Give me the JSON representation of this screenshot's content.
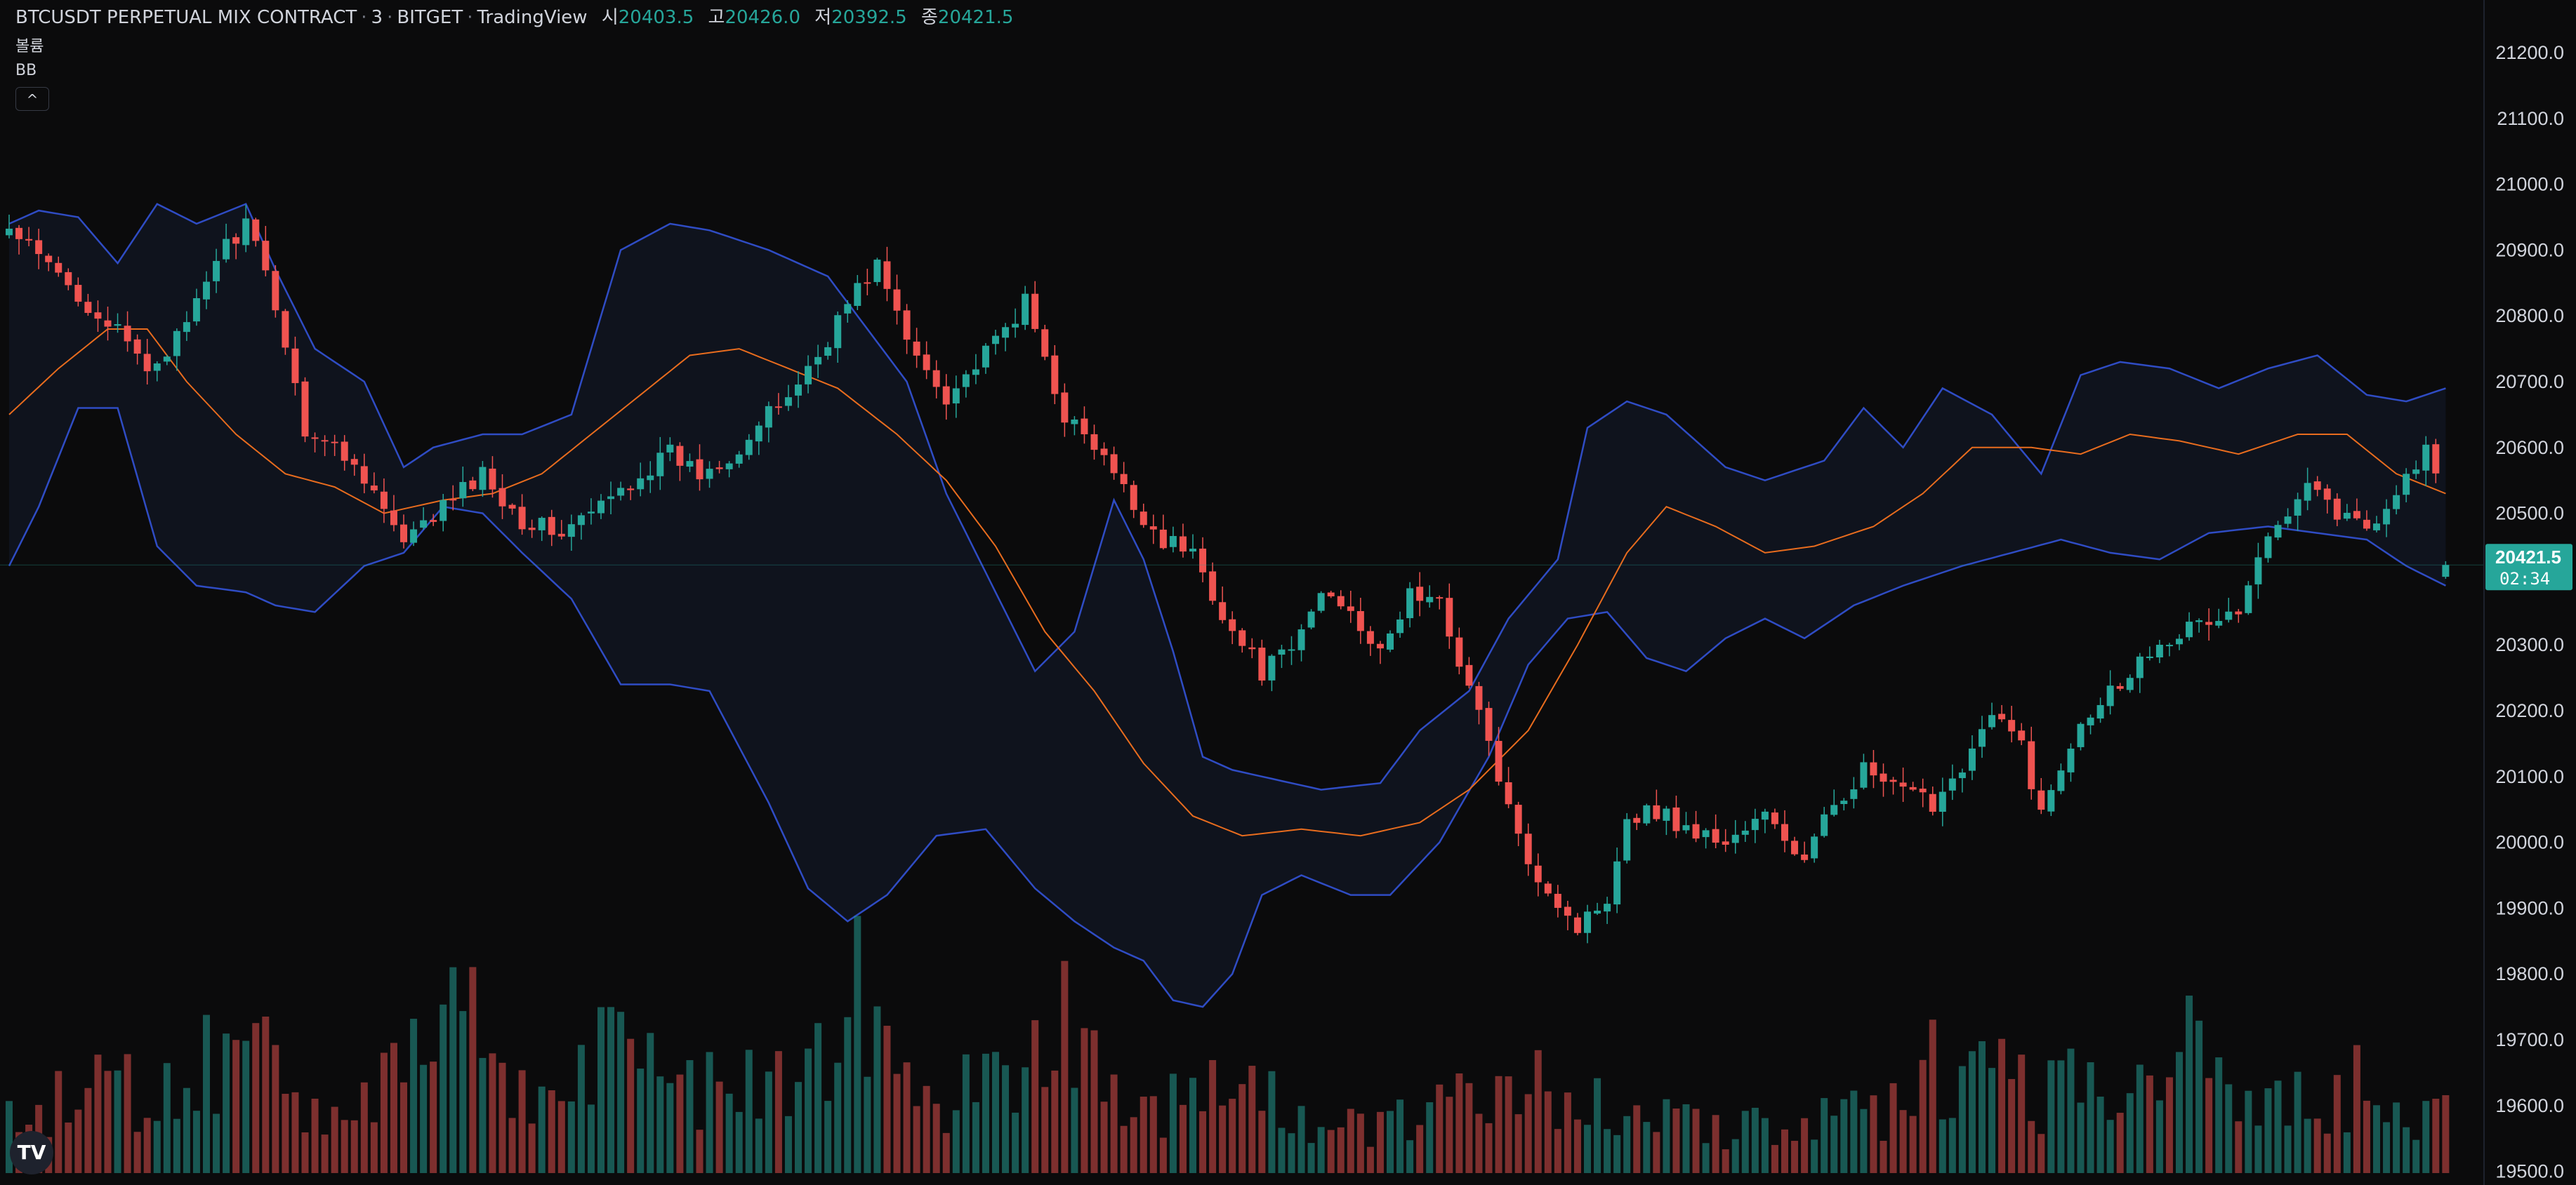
{
  "header": {
    "symbol": "BTCUSDT PERPETUAL MIX CONTRACT",
    "interval": "3",
    "exchange": "BITGET",
    "source": "TradingView",
    "ohlc": [
      {
        "key": "시",
        "value": "20403.5"
      },
      {
        "key": "고",
        "value": "20426.0"
      },
      {
        "key": "저",
        "value": "20392.5"
      },
      {
        "key": "종",
        "value": "20421.5"
      }
    ]
  },
  "indicators": {
    "volume": "볼륨",
    "bb": "BB",
    "collapse": "^"
  },
  "price_tag": {
    "price": "20421.5",
    "countdown": "02:34"
  },
  "logo": "TV",
  "colors": {
    "background": "#0b0b0c",
    "up": "#26a69a",
    "down": "#ef5350",
    "bb_band": "#2f4cc4",
    "bb_basis": "#e86c1e",
    "axis_text": "#d1d4dc"
  },
  "chart_data": {
    "type": "candlestick",
    "y_axis_ticks": [
      "21200.0",
      "21100.0",
      "21000.0",
      "20900.0",
      "20800.0",
      "20700.0",
      "20600.0",
      "20500.0",
      "20400.0",
      "20300.0",
      "20200.0",
      "20100.0",
      "20000.0",
      "19900.0",
      "19800.0",
      "19700.0",
      "19600.0",
      "19500.0"
    ],
    "ylim": [
      19500,
      21200
    ],
    "last_price": 20421.5,
    "candle_count": 248,
    "close_path": [
      [
        0,
        20930
      ],
      [
        10,
        20790
      ],
      [
        14,
        20720
      ],
      [
        18,
        20780
      ],
      [
        21,
        20890
      ],
      [
        24,
        20940
      ],
      [
        27,
        20820
      ],
      [
        30,
        20630
      ],
      [
        33,
        20600
      ],
      [
        36,
        20560
      ],
      [
        40,
        20450
      ],
      [
        44,
        20510
      ],
      [
        48,
        20560
      ],
      [
        52,
        20490
      ],
      [
        56,
        20470
      ],
      [
        60,
        20510
      ],
      [
        64,
        20560
      ],
      [
        67,
        20590
      ],
      [
        70,
        20560
      ],
      [
        74,
        20600
      ],
      [
        79,
        20680
      ],
      [
        82,
        20740
      ],
      [
        85,
        20820
      ],
      [
        88,
        20880
      ],
      [
        91,
        20760
      ],
      [
        95,
        20680
      ],
      [
        99,
        20740
      ],
      [
        103,
        20820
      ],
      [
        107,
        20650
      ],
      [
        111,
        20580
      ],
      [
        114,
        20510
      ],
      [
        117,
        20460
      ],
      [
        120,
        20440
      ],
      [
        124,
        20320
      ],
      [
        127,
        20260
      ],
      [
        130,
        20290
      ],
      [
        133,
        20380
      ],
      [
        136,
        20360
      ],
      [
        139,
        20280
      ],
      [
        142,
        20380
      ],
      [
        145,
        20360
      ],
      [
        147,
        20280
      ],
      [
        150,
        20150
      ],
      [
        153,
        20000
      ],
      [
        156,
        19930
      ],
      [
        159,
        19870
      ],
      [
        162,
        19920
      ],
      [
        164,
        20040
      ],
      [
        167,
        20050
      ],
      [
        170,
        20020
      ],
      [
        174,
        20000
      ],
      [
        178,
        20040
      ],
      [
        182,
        19970
      ],
      [
        185,
        20060
      ],
      [
        188,
        20110
      ],
      [
        191,
        20080
      ],
      [
        195,
        20060
      ],
      [
        198,
        20120
      ],
      [
        201,
        20190
      ],
      [
        204,
        20150
      ],
      [
        206,
        20040
      ],
      [
        210,
        20190
      ],
      [
        215,
        20260
      ],
      [
        218,
        20310
      ],
      [
        222,
        20330
      ],
      [
        226,
        20350
      ],
      [
        229,
        20460
      ],
      [
        233,
        20560
      ],
      [
        236,
        20500
      ],
      [
        239,
        20480
      ],
      [
        242,
        20530
      ],
      [
        245,
        20600
      ],
      [
        247,
        20500
      ]
    ],
    "bb_upper_path": [
      [
        0,
        20940
      ],
      [
        3,
        20960
      ],
      [
        7,
        20950
      ],
      [
        11,
        20880
      ],
      [
        15,
        20970
      ],
      [
        19,
        20940
      ],
      [
        24,
        20970
      ],
      [
        27,
        20870
      ],
      [
        31,
        20750
      ],
      [
        36,
        20700
      ],
      [
        40,
        20570
      ],
      [
        43,
        20600
      ],
      [
        48,
        20620
      ],
      [
        52,
        20620
      ],
      [
        57,
        20650
      ],
      [
        62,
        20900
      ],
      [
        67,
        20940
      ],
      [
        71,
        20930
      ],
      [
        77,
        20900
      ],
      [
        83,
        20860
      ],
      [
        87,
        20780
      ],
      [
        91,
        20700
      ],
      [
        95,
        20530
      ],
      [
        99,
        20410
      ],
      [
        104,
        20260
      ],
      [
        108,
        20320
      ],
      [
        112,
        20520
      ],
      [
        115,
        20430
      ],
      [
        118,
        20290
      ],
      [
        121,
        20130
      ],
      [
        124,
        20110
      ],
      [
        127,
        20100
      ],
      [
        133,
        20080
      ],
      [
        139,
        20090
      ],
      [
        143,
        20170
      ],
      [
        148,
        20230
      ],
      [
        152,
        20340
      ],
      [
        157,
        20430
      ],
      [
        160,
        20630
      ],
      [
        164,
        20670
      ],
      [
        168,
        20650
      ],
      [
        174,
        20570
      ],
      [
        178,
        20550
      ],
      [
        184,
        20580
      ],
      [
        188,
        20660
      ],
      [
        192,
        20600
      ],
      [
        196,
        20690
      ],
      [
        201,
        20650
      ],
      [
        206,
        20560
      ],
      [
        210,
        20710
      ],
      [
        214,
        20730
      ],
      [
        219,
        20720
      ],
      [
        224,
        20690
      ],
      [
        229,
        20720
      ],
      [
        234,
        20740
      ],
      [
        239,
        20680
      ],
      [
        243,
        20670
      ],
      [
        247,
        20690
      ]
    ],
    "bb_lower_path": [
      [
        0,
        20420
      ],
      [
        3,
        20510
      ],
      [
        7,
        20660
      ],
      [
        11,
        20660
      ],
      [
        15,
        20450
      ],
      [
        19,
        20390
      ],
      [
        24,
        20380
      ],
      [
        27,
        20360
      ],
      [
        31,
        20350
      ],
      [
        36,
        20420
      ],
      [
        40,
        20440
      ],
      [
        44,
        20510
      ],
      [
        48,
        20500
      ],
      [
        52,
        20440
      ],
      [
        57,
        20370
      ],
      [
        62,
        20240
      ],
      [
        67,
        20240
      ],
      [
        71,
        20230
      ],
      [
        77,
        20060
      ],
      [
        81,
        19930
      ],
      [
        85,
        19880
      ],
      [
        89,
        19920
      ],
      [
        94,
        20010
      ],
      [
        99,
        20020
      ],
      [
        104,
        19930
      ],
      [
        108,
        19880
      ],
      [
        112,
        19840
      ],
      [
        115,
        19820
      ],
      [
        118,
        19760
      ],
      [
        121,
        19750
      ],
      [
        124,
        19800
      ],
      [
        127,
        19920
      ],
      [
        131,
        19950
      ],
      [
        136,
        19920
      ],
      [
        140,
        19920
      ],
      [
        145,
        20000
      ],
      [
        150,
        20130
      ],
      [
        154,
        20270
      ],
      [
        158,
        20340
      ],
      [
        162,
        20350
      ],
      [
        166,
        20280
      ],
      [
        170,
        20260
      ],
      [
        174,
        20310
      ],
      [
        178,
        20340
      ],
      [
        182,
        20310
      ],
      [
        187,
        20360
      ],
      [
        192,
        20390
      ],
      [
        198,
        20420
      ],
      [
        203,
        20440
      ],
      [
        208,
        20460
      ],
      [
        213,
        20440
      ],
      [
        218,
        20430
      ],
      [
        223,
        20470
      ],
      [
        229,
        20480
      ],
      [
        234,
        20470
      ],
      [
        239,
        20460
      ],
      [
        243,
        20420
      ],
      [
        247,
        20390
      ]
    ],
    "bb_basis_path": [
      [
        0,
        20650
      ],
      [
        5,
        20720
      ],
      [
        10,
        20780
      ],
      [
        14,
        20780
      ],
      [
        18,
        20700
      ],
      [
        23,
        20620
      ],
      [
        28,
        20560
      ],
      [
        33,
        20540
      ],
      [
        38,
        20500
      ],
      [
        44,
        20520
      ],
      [
        49,
        20530
      ],
      [
        54,
        20560
      ],
      [
        59,
        20620
      ],
      [
        64,
        20680
      ],
      [
        69,
        20740
      ],
      [
        74,
        20750
      ],
      [
        79,
        20720
      ],
      [
        84,
        20690
      ],
      [
        90,
        20620
      ],
      [
        95,
        20550
      ],
      [
        100,
        20450
      ],
      [
        105,
        20320
      ],
      [
        110,
        20230
      ],
      [
        115,
        20120
      ],
      [
        120,
        20040
      ],
      [
        125,
        20010
      ],
      [
        131,
        20020
      ],
      [
        137,
        20010
      ],
      [
        143,
        20030
      ],
      [
        148,
        20080
      ],
      [
        154,
        20170
      ],
      [
        159,
        20300
      ],
      [
        164,
        20440
      ],
      [
        168,
        20510
      ],
      [
        173,
        20480
      ],
      [
        178,
        20440
      ],
      [
        183,
        20450
      ],
      [
        189,
        20480
      ],
      [
        194,
        20530
      ],
      [
        199,
        20600
      ],
      [
        205,
        20600
      ],
      [
        210,
        20590
      ],
      [
        215,
        20620
      ],
      [
        220,
        20610
      ],
      [
        226,
        20590
      ],
      [
        232,
        20620
      ],
      [
        237,
        20620
      ],
      [
        242,
        20560
      ],
      [
        247,
        20530
      ]
    ],
    "volume_profile": [
      [
        0,
        0.25
      ],
      [
        10,
        0.35
      ],
      [
        20,
        0.45
      ],
      [
        26,
        0.55
      ],
      [
        30,
        0.3
      ],
      [
        40,
        0.4
      ],
      [
        48,
        0.7
      ],
      [
        52,
        0.35
      ],
      [
        56,
        0.3
      ],
      [
        60,
        0.55
      ],
      [
        62,
        0.95
      ],
      [
        64,
        0.5
      ],
      [
        70,
        0.35
      ],
      [
        80,
        0.4
      ],
      [
        84,
        0.7
      ],
      [
        86,
        0.9
      ],
      [
        88,
        0.55
      ],
      [
        92,
        0.3
      ],
      [
        100,
        0.4
      ],
      [
        106,
        0.65
      ],
      [
        108,
        0.75
      ],
      [
        112,
        0.35
      ],
      [
        118,
        0.3
      ],
      [
        124,
        0.4
      ],
      [
        130,
        0.25
      ],
      [
        140,
        0.2
      ],
      [
        145,
        0.25
      ],
      [
        150,
        0.4
      ],
      [
        154,
        0.55
      ],
      [
        158,
        0.3
      ],
      [
        170,
        0.2
      ],
      [
        180,
        0.2
      ],
      [
        190,
        0.25
      ],
      [
        195,
        0.45
      ],
      [
        200,
        0.55
      ],
      [
        205,
        0.35
      ],
      [
        210,
        0.4
      ],
      [
        215,
        0.45
      ],
      [
        220,
        0.55
      ],
      [
        225,
        0.35
      ],
      [
        232,
        0.3
      ],
      [
        240,
        0.4
      ],
      [
        244,
        0.3
      ],
      [
        247,
        0.25
      ]
    ]
  }
}
